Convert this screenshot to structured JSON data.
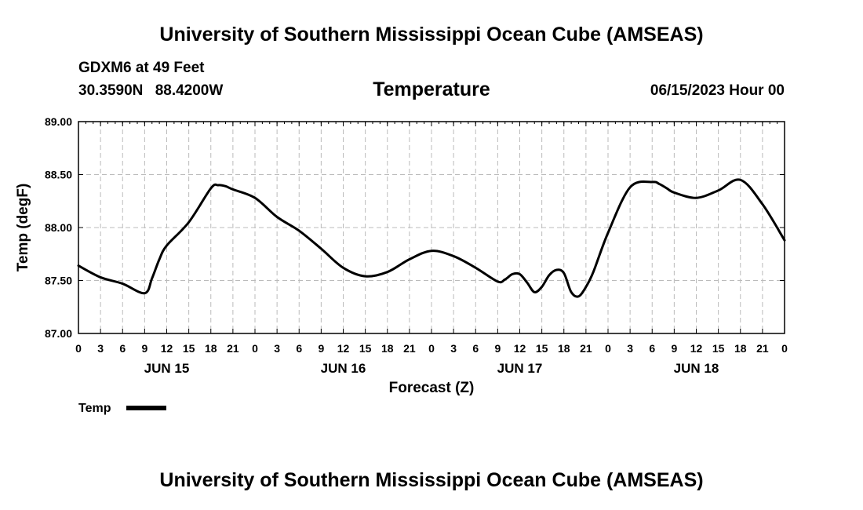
{
  "header": {
    "title": "University of Southern Mississippi Ocean Cube (AMSEAS)",
    "station": "GDXM6 at 49 Feet",
    "latitude": "30.3590N",
    "longitude": "88.4200W",
    "subtitle": "Temperature",
    "datetime": "06/15/2023 Hour 00"
  },
  "footer": {
    "title": "University of Southern Mississippi Ocean Cube (AMSEAS)"
  },
  "chart_data": {
    "type": "line",
    "title": "Temperature",
    "xlabel": "Forecast (Z)",
    "ylabel": "Temp (degF)",
    "xlim": [
      0,
      96
    ],
    "ylim": [
      87.0,
      89.0
    ],
    "y_ticks": [
      "87.00",
      "87.50",
      "88.00",
      "88.50",
      "89.00"
    ],
    "x_tick_labels": [
      "0",
      "3",
      "6",
      "9",
      "12",
      "15",
      "18",
      "21",
      "0",
      "3",
      "6",
      "9",
      "12",
      "15",
      "18",
      "21",
      "0",
      "3",
      "6",
      "9",
      "12",
      "15",
      "18",
      "21",
      "0",
      "3",
      "6",
      "9",
      "12",
      "15",
      "18",
      "21",
      "0"
    ],
    "day_labels": [
      {
        "label": "JUN 15",
        "hour": 12
      },
      {
        "label": "JUN 16",
        "hour": 36
      },
      {
        "label": "JUN 17",
        "hour": 60
      },
      {
        "label": "JUN 18",
        "hour": 84
      }
    ],
    "grid": true,
    "legend": {
      "position": "bottom-left",
      "entries": [
        "Temp"
      ]
    },
    "series": [
      {
        "name": "Temp",
        "x": [
          0,
          3,
          6,
          9,
          10,
          11,
          12,
          15,
          18,
          19,
          20,
          21,
          24,
          27,
          30,
          33,
          36,
          39,
          42,
          45,
          48,
          51,
          54,
          57,
          58,
          59,
          60,
          61,
          62,
          63,
          64,
          65,
          66,
          67,
          68,
          69,
          70,
          72,
          75,
          78,
          79,
          80,
          81,
          84,
          87,
          90,
          93,
          96
        ],
        "values": [
          87.64,
          87.53,
          87.47,
          87.38,
          87.52,
          87.7,
          87.83,
          88.05,
          88.37,
          88.4,
          88.39,
          88.36,
          88.28,
          88.1,
          87.97,
          87.8,
          87.62,
          87.54,
          87.58,
          87.7,
          87.78,
          87.73,
          87.62,
          87.49,
          87.51,
          87.56,
          87.56,
          87.48,
          87.39,
          87.44,
          87.55,
          87.6,
          87.57,
          87.39,
          87.35,
          87.44,
          87.58,
          87.95,
          88.38,
          88.43,
          88.41,
          88.37,
          88.33,
          88.28,
          88.35,
          88.45,
          88.22,
          87.88
        ]
      }
    ]
  }
}
